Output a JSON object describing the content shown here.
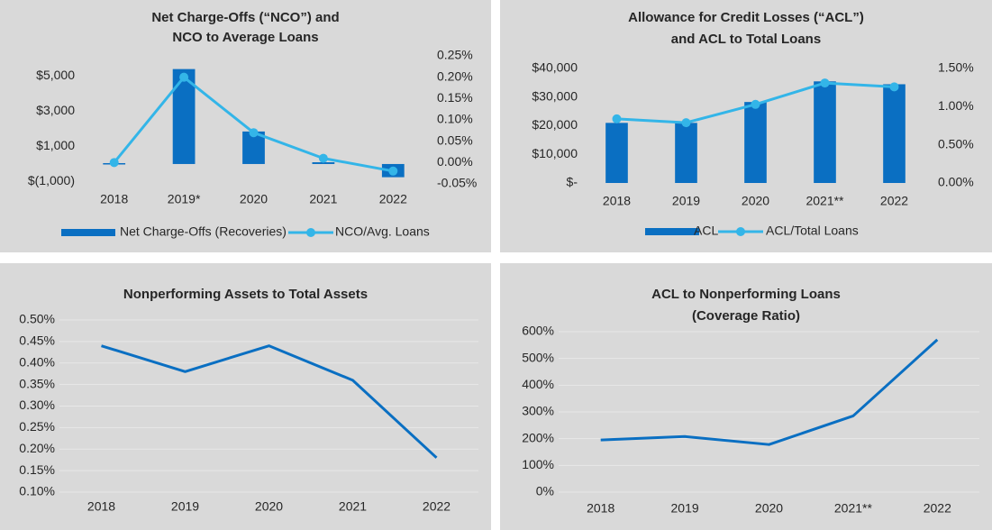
{
  "chart_data": [
    {
      "type": "bar_line",
      "title": [
        "Net Charge-Offs (“NCO”) and",
        "NCO to Average Loans"
      ],
      "categories": [
        "2018",
        "2019*",
        "2020",
        "2021",
        "2022"
      ],
      "series": [
        {
          "name": "Net Charge-Offs (Recoveries)",
          "type": "bar",
          "color": "#0a6fc2",
          "values": [
            50,
            5400,
            1850,
            100,
            -750
          ]
        },
        {
          "name": "NCO/Avg. Loans",
          "type": "line",
          "axis": "y2",
          "color": "#33b5e8",
          "values": [
            0.0,
            0.2,
            0.07,
            0.01,
            -0.02
          ]
        }
      ],
      "ylim": [
        -1130,
        6150
      ],
      "yticks": [
        {
          "value": -1000,
          "label": "$(1,000)"
        },
        {
          "value": 1000,
          "label": "$1,000"
        },
        {
          "value": 3000,
          "label": "$3,000"
        },
        {
          "value": 5000,
          "label": "$5,000"
        }
      ],
      "y2lim": [
        -0.05,
        0.25
      ],
      "y2ticks": [
        {
          "value": -0.05,
          "label": "-0.05%"
        },
        {
          "value": 0,
          "label": "0.00%"
        },
        {
          "value": 0.05,
          "label": "0.05%"
        },
        {
          "value": 0.1,
          "label": "0.10%"
        },
        {
          "value": 0.15,
          "label": "0.15%"
        },
        {
          "value": 0.2,
          "label": "0.20%"
        },
        {
          "value": 0.25,
          "label": "0.25%"
        }
      ],
      "grid": false,
      "legend": "bottom"
    },
    {
      "type": "bar_line",
      "title": [
        "Allowance for Credit Losses (“ACL”)",
        "and ACL to Total Loans"
      ],
      "categories": [
        "2018",
        "2019",
        "2020",
        "2021**",
        "2022"
      ],
      "series": [
        {
          "name": "ACL",
          "type": "bar",
          "color": "#0a6fc2",
          "values": [
            21000,
            21000,
            28300,
            35500,
            34500
          ]
        },
        {
          "name": "ACL/Total Loans",
          "type": "line",
          "axis": "y2",
          "color": "#33b5e8",
          "values": [
            0.84,
            0.79,
            1.03,
            1.31,
            1.26
          ]
        }
      ],
      "ylim": [
        0,
        40000
      ],
      "yticks": [
        {
          "value": 0,
          "label": "$-"
        },
        {
          "value": 10000,
          "label": "$10,000"
        },
        {
          "value": 20000,
          "label": "$20,000"
        },
        {
          "value": 30000,
          "label": "$30,000"
        },
        {
          "value": 40000,
          "label": "$40,000"
        }
      ],
      "y2lim": [
        0,
        1.5
      ],
      "y2ticks": [
        {
          "value": 0,
          "label": "0.00%"
        },
        {
          "value": 0.5,
          "label": "0.50%"
        },
        {
          "value": 1.0,
          "label": "1.00%"
        },
        {
          "value": 1.5,
          "label": "1.50%"
        }
      ],
      "grid": false,
      "legend": "bottom"
    },
    {
      "type": "line",
      "title": [
        "Nonperforming Assets to Total Assets"
      ],
      "categories": [
        "2018",
        "2019",
        "2020",
        "2021",
        "2022"
      ],
      "values": [
        0.44,
        0.38,
        0.44,
        0.36,
        0.18
      ],
      "color": "#0a6fc2",
      "ylim": [
        0.1,
        0.5
      ],
      "yticks": [
        {
          "value": 0.1,
          "label": "0.10%"
        },
        {
          "value": 0.15,
          "label": "0.15%"
        },
        {
          "value": 0.2,
          "label": "0.20%"
        },
        {
          "value": 0.25,
          "label": "0.25%"
        },
        {
          "value": 0.3,
          "label": "0.30%"
        },
        {
          "value": 0.35,
          "label": "0.35%"
        },
        {
          "value": 0.4,
          "label": "0.40%"
        },
        {
          "value": 0.45,
          "label": "0.45%"
        },
        {
          "value": 0.5,
          "label": "0.50%"
        }
      ],
      "grid": true
    },
    {
      "type": "line",
      "title": [
        "ACL to Nonperforming Loans",
        "(Coverage Ratio)"
      ],
      "categories": [
        "2018",
        "2019",
        "2020",
        "2021**",
        "2022"
      ],
      "values": [
        195,
        208,
        178,
        285,
        570
      ],
      "color": "#0a6fc2",
      "ylim": [
        0,
        600
      ],
      "yticks": [
        {
          "value": 0,
          "label": "0%"
        },
        {
          "value": 100,
          "label": "100%"
        },
        {
          "value": 200,
          "label": "200%"
        },
        {
          "value": 300,
          "label": "300%"
        },
        {
          "value": 400,
          "label": "400%"
        },
        {
          "value": 500,
          "label": "500%"
        },
        {
          "value": 600,
          "label": "600%"
        }
      ],
      "grid": true
    }
  ]
}
